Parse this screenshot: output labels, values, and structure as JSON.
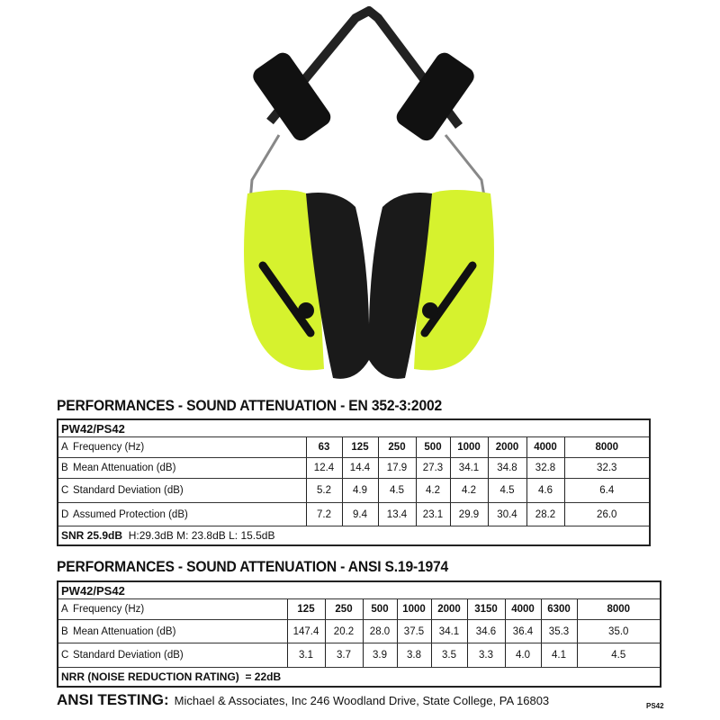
{
  "en_table": {
    "title": "PERFORMANCES - SOUND ATTENUATION - EN 352-3:2002",
    "model": "PW42/PS42",
    "rows": [
      {
        "letter": "A",
        "label": "Frequency (Hz)",
        "values": [
          "63",
          "125",
          "250",
          "500",
          "1000",
          "2000",
          "4000",
          "8000"
        ]
      },
      {
        "letter": "B",
        "label": "Mean Attenuation (dB)",
        "values": [
          "12.4",
          "14.4",
          "17.9",
          "27.3",
          "34.1",
          "34.8",
          "32.8",
          "32.3"
        ]
      },
      {
        "letter": "C",
        "label": "Standard Deviation (dB)",
        "values": [
          "5.2",
          "4.9",
          "4.5",
          "4.2",
          "4.2",
          "4.5",
          "4.6",
          "6.4"
        ]
      },
      {
        "letter": "D",
        "label": "Assumed Protection (dB)",
        "values": [
          "7.2",
          "9.4",
          "13.4",
          "23.1",
          "29.9",
          "30.4",
          "28.2",
          "26.0"
        ]
      }
    ],
    "footer_snr": "SNR 25.9dB",
    "footer_hml": "H:29.3dB  M: 23.8dB  L: 15.5dB"
  },
  "ansi_table": {
    "title": "PERFORMANCES - SOUND ATTENUATION - ANSI S.19-1974",
    "model": "PW42/PS42",
    "rows": [
      {
        "letter": "A",
        "label": "Frequency (Hz)",
        "values": [
          "125",
          "250",
          "500",
          "1000",
          "2000",
          "3150",
          "4000",
          "6300",
          "8000"
        ]
      },
      {
        "letter": "B",
        "label": "Mean Attenuation (dB)",
        "values": [
          "147.4",
          "20.2",
          "28.0",
          "37.5",
          "34.1",
          "34.6",
          "36.4",
          "35.3",
          "35.0"
        ]
      },
      {
        "letter": "C",
        "label": "Standard Deviation (dB)",
        "values": [
          "3.1",
          "3.7",
          "3.9",
          "3.8",
          "3.5",
          "3.3",
          "4.0",
          "4.1",
          "4.5"
        ]
      }
    ],
    "footer_nrr_label": "NRR (NOISE REDUCTION RATING)",
    "footer_nrr_value": "= 22dB"
  },
  "ansi_testing": {
    "label": "ANSI TESTING:",
    "text": "Michael & Associates, Inc 246 Woodland Drive, State College, PA 16803"
  },
  "product_code": "PS42",
  "colors": {
    "cup_yellow": "#d6f22e",
    "cushion_black": "#1a1a1a"
  }
}
